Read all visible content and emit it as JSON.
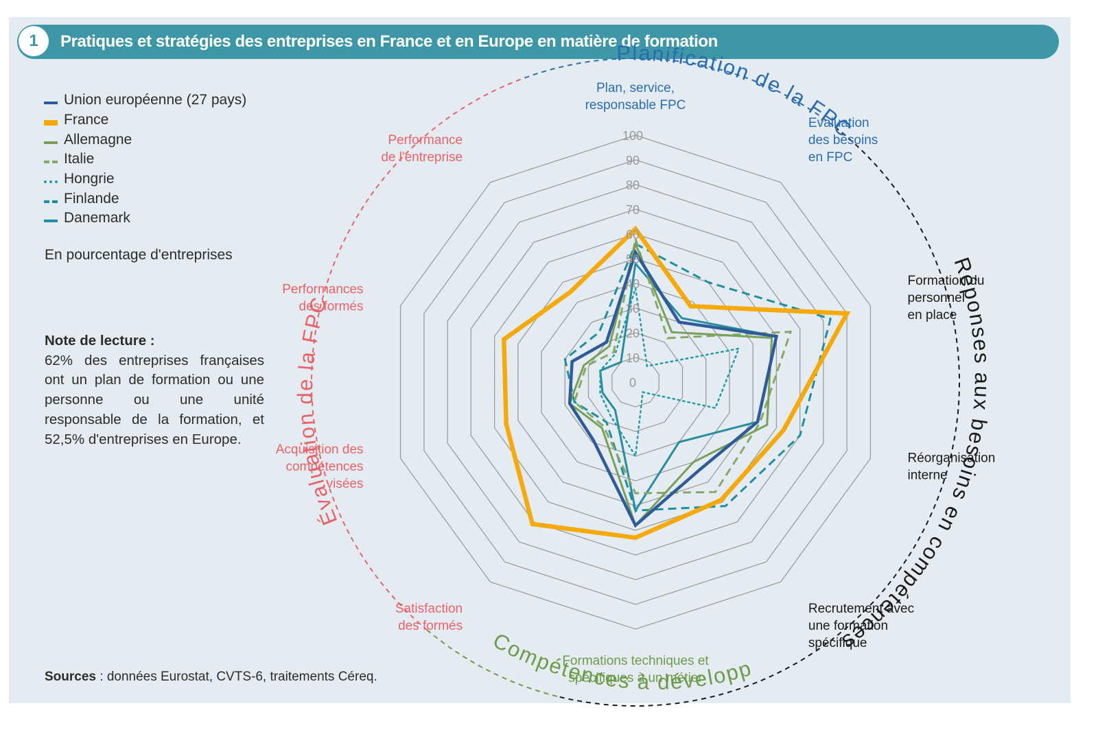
{
  "header": {
    "figure_number": "1",
    "title": "Pratiques et stratégies des entreprises en France et en Europe en matière de formation"
  },
  "unit_note": "En pourcentage d'entreprises",
  "reading_note": {
    "title": "Note de lecture :",
    "text": "62% des entreprises françaises ont un plan de formation ou une personne ou une unité responsable de la formation, et 52,5% d'entreprises en Europe."
  },
  "sources": {
    "label": "Sources",
    "text": " : données Eurostat, CVTS-6, traitements Céreq."
  },
  "arc_labels": {
    "planification": "Planification de la FPC",
    "reponses": "Réponses aux besoins en compétences",
    "competences": "Compétences à développer",
    "evaluation": "Évaluation de la FPC"
  },
  "colors": {
    "header": "#3e97a6",
    "panel": "#e5ecf1",
    "planification": "#2b6cb0",
    "reponses": "#1a1a1a",
    "competences": "#6e9a4c",
    "evaluation": "#e8626a"
  },
  "chart_data": {
    "type": "radar",
    "unit": "En pourcentage d'entreprises",
    "rlim": [
      0,
      100
    ],
    "ticks": [
      0,
      10,
      20,
      30,
      40,
      50,
      60,
      70,
      80,
      90,
      100
    ],
    "axes": [
      {
        "label": [
          "Plan, service,",
          "responsable FPC"
        ],
        "group": "planification"
      },
      {
        "label": [
          "Evaluation",
          "des besoins",
          "en FPC"
        ],
        "group": "planification"
      },
      {
        "label": [
          "Formation du",
          "personnel",
          "en place"
        ],
        "group": "reponses"
      },
      {
        "label": [
          "Réorganisation",
          "interne"
        ],
        "group": "reponses"
      },
      {
        "label": [
          "Recrutement avec",
          "une formation",
          "spécifique"
        ],
        "group": "reponses"
      },
      {
        "label": [
          "Formations techniques et",
          "spécifiques à un métier"
        ],
        "group": "competences"
      },
      {
        "label": [
          "Satisfaction",
          "des formés"
        ],
        "group": "evaluation"
      },
      {
        "label": [
          "Acquisition des",
          "compétences",
          "visées"
        ],
        "group": "evaluation"
      },
      {
        "label": [
          "Performances",
          "des formés"
        ],
        "group": "evaluation"
      },
      {
        "label": [
          "Performance",
          "de l'entreprise"
        ],
        "group": "evaluation"
      }
    ],
    "series": [
      {
        "name": "Union européenne (27 pays)",
        "color": "#2e5b9a",
        "dash": "solid",
        "width": 4.5,
        "values": [
          52.5,
          30,
          60,
          52,
          44,
          58,
          29,
          28,
          27,
          20
        ]
      },
      {
        "name": "France",
        "color": "#f5a90a",
        "dash": "solid",
        "width": 6.5,
        "values": [
          62,
          38,
          90,
          63,
          59,
          63,
          71,
          55,
          56,
          45
        ]
      },
      {
        "name": "Allemagne",
        "color": "#79a05a",
        "dash": "solid",
        "width": 3,
        "values": [
          56,
          25,
          58,
          56,
          40,
          58,
          23,
          28,
          22,
          18
        ]
      },
      {
        "name": "Italie",
        "color": "#87a868",
        "dash": "dash",
        "width": 3,
        "values": [
          58,
          22,
          66,
          53,
          55,
          45,
          22,
          26,
          21,
          15
        ]
      },
      {
        "name": "Hongrie",
        "color": "#1f9ca8",
        "dash": "dot",
        "width": 2.5,
        "values": [
          38,
          8,
          44,
          34,
          5,
          30,
          17,
          15,
          15,
          14
        ]
      },
      {
        "name": "Finlande",
        "color": "#1e8fa0",
        "dash": "dash",
        "width": 3,
        "values": [
          56,
          50,
          83,
          70,
          62,
          52,
          20,
          26,
          30,
          25
        ]
      },
      {
        "name": "Danemark",
        "color": "#258d9f",
        "dash": "solid",
        "width": 3,
        "values": [
          48,
          32,
          60,
          52,
          30,
          52,
          14,
          14,
          15,
          10
        ]
      }
    ]
  }
}
